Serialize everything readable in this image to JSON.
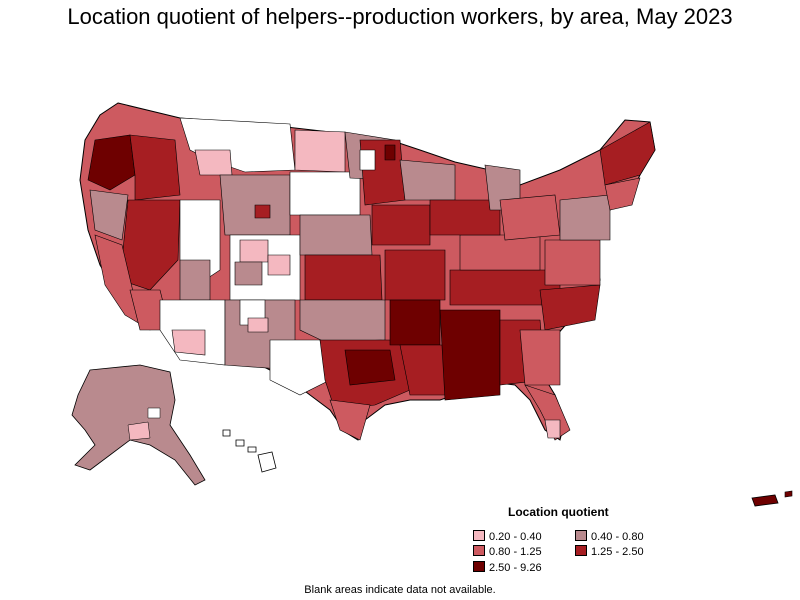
{
  "title": "Location quotient of helpers--production workers, by area, May 2023",
  "legend": {
    "title": "Location quotient",
    "items": [
      {
        "label": "0.20 - 0.40",
        "color": "#f4b8c0"
      },
      {
        "label": "0.40 - 0.80",
        "color": "#b98a8e"
      },
      {
        "label": "0.80 - 1.25",
        "color": "#cd5a60"
      },
      {
        "label": "1.25 - 2.50",
        "color": "#a61e22"
      },
      {
        "label": "2.50 - 9.26",
        "color": "#6e0000"
      }
    ]
  },
  "footnote": "Blank areas indicate data not available.",
  "colors": {
    "boundary": "#000000",
    "no_data": "#ffffff"
  }
}
